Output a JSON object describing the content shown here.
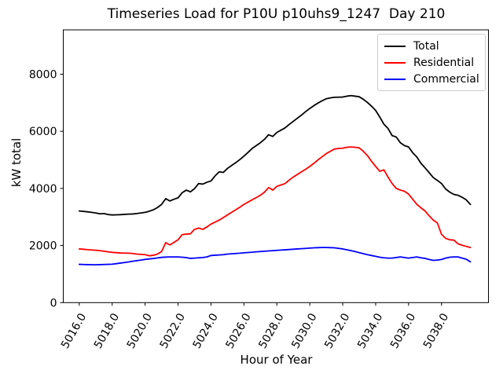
{
  "chart_data": {
    "type": "line",
    "title": "Timeseries Load for P10U p10uhs9_1247  Day 210",
    "xlabel": "Hour of Year",
    "ylabel": "kW total",
    "xlim": [
      5015.03,
      5040.85
    ],
    "ylim": [
      0,
      9553
    ],
    "x_ticks": [
      5016,
      5018,
      5020,
      5022,
      5024,
      5026,
      5028,
      5030,
      5032,
      5034,
      5036,
      5038
    ],
    "x_tick_labels": [
      "5016.0",
      "5018.0",
      "5020.0",
      "5022.0",
      "5024.0",
      "5026.0",
      "5028.0",
      "5030.0",
      "5032.0",
      "5034.0",
      "5036.0",
      "5038.0"
    ],
    "x_tick_rotation": 60,
    "y_ticks": [
      0,
      2000,
      4000,
      6000,
      8000
    ],
    "y_tick_labels": [
      "0",
      "2000",
      "4000",
      "6000",
      "8000"
    ],
    "grid": false,
    "legend_position": "upper-right",
    "x": [
      5016.0,
      5016.25,
      5016.5,
      5016.75,
      5017.0,
      5017.25,
      5017.5,
      5017.75,
      5018.0,
      5018.25,
      5018.5,
      5018.75,
      5019.0,
      5019.25,
      5019.5,
      5019.75,
      5020.0,
      5020.25,
      5020.5,
      5020.75,
      5021.0,
      5021.25,
      5021.5,
      5021.75,
      5022.0,
      5022.25,
      5022.5,
      5022.75,
      5023.0,
      5023.25,
      5023.5,
      5023.75,
      5024.0,
      5024.25,
      5024.5,
      5024.75,
      5025.0,
      5025.25,
      5025.5,
      5025.75,
      5026.0,
      5026.25,
      5026.5,
      5026.75,
      5027.0,
      5027.25,
      5027.5,
      5027.75,
      5028.0,
      5028.25,
      5028.5,
      5028.75,
      5029.0,
      5029.25,
      5029.5,
      5029.75,
      5030.0,
      5030.25,
      5030.5,
      5030.75,
      5031.0,
      5031.25,
      5031.5,
      5031.75,
      5032.0,
      5032.25,
      5032.5,
      5032.75,
      5033.0,
      5033.25,
      5033.5,
      5033.75,
      5034.0,
      5034.25,
      5034.5,
      5034.75,
      5035.0,
      5035.25,
      5035.5,
      5035.75,
      5036.0,
      5036.25,
      5036.5,
      5036.75,
      5037.0,
      5037.25,
      5037.5,
      5037.75,
      5038.0,
      5038.25,
      5038.5,
      5038.75,
      5039.0,
      5039.25,
      5039.5,
      5039.75
    ],
    "series": [
      {
        "name": "Total",
        "color": "#000000",
        "values": [
          3210,
          3195,
          3180,
          3160,
          3140,
          3110,
          3120,
          3085,
          3070,
          3075,
          3080,
          3090,
          3100,
          3105,
          3120,
          3140,
          3160,
          3200,
          3250,
          3330,
          3440,
          3640,
          3560,
          3620,
          3670,
          3850,
          3940,
          3880,
          3990,
          4170,
          4150,
          4215,
          4260,
          4440,
          4580,
          4560,
          4700,
          4800,
          4900,
          5010,
          5130,
          5260,
          5400,
          5500,
          5600,
          5720,
          5880,
          5820,
          5960,
          6040,
          6120,
          6240,
          6350,
          6460,
          6570,
          6690,
          6800,
          6900,
          6990,
          7070,
          7140,
          7170,
          7190,
          7195,
          7200,
          7230,
          7250,
          7230,
          7210,
          7120,
          7010,
          6880,
          6730,
          6500,
          6250,
          6100,
          5850,
          5800,
          5600,
          5500,
          5450,
          5250,
          5100,
          4880,
          4720,
          4550,
          4380,
          4280,
          4170,
          3980,
          3870,
          3790,
          3760,
          3690,
          3600,
          3440
        ]
      },
      {
        "name": "Residential",
        "color": "#ff0000",
        "values": [
          1880,
          1870,
          1855,
          1845,
          1835,
          1820,
          1800,
          1780,
          1760,
          1750,
          1740,
          1735,
          1730,
          1720,
          1700,
          1690,
          1680,
          1640,
          1660,
          1700,
          1790,
          2100,
          2020,
          2110,
          2200,
          2380,
          2400,
          2410,
          2565,
          2610,
          2565,
          2650,
          2750,
          2820,
          2890,
          2980,
          3070,
          3160,
          3250,
          3340,
          3440,
          3520,
          3600,
          3680,
          3760,
          3870,
          4030,
          3940,
          4070,
          4120,
          4170,
          4290,
          4400,
          4490,
          4580,
          4670,
          4770,
          4880,
          5000,
          5110,
          5220,
          5300,
          5380,
          5400,
          5410,
          5440,
          5450,
          5440,
          5420,
          5300,
          5150,
          4950,
          4770,
          4600,
          4650,
          4400,
          4170,
          4000,
          3940,
          3900,
          3800,
          3620,
          3440,
          3320,
          3210,
          3040,
          2890,
          2790,
          2390,
          2250,
          2200,
          2190,
          2060,
          2010,
          1970,
          1930
        ]
      },
      {
        "name": "Commercial",
        "color": "#0000ff",
        "values": [
          1340,
          1335,
          1330,
          1328,
          1325,
          1330,
          1335,
          1340,
          1345,
          1365,
          1385,
          1405,
          1425,
          1450,
          1470,
          1490,
          1515,
          1530,
          1545,
          1565,
          1585,
          1595,
          1600,
          1600,
          1600,
          1590,
          1575,
          1550,
          1560,
          1570,
          1580,
          1600,
          1650,
          1660,
          1670,
          1680,
          1700,
          1710,
          1720,
          1730,
          1745,
          1755,
          1765,
          1780,
          1790,
          1800,
          1810,
          1820,
          1830,
          1840,
          1850,
          1860,
          1870,
          1880,
          1890,
          1900,
          1910,
          1920,
          1925,
          1930,
          1930,
          1925,
          1920,
          1900,
          1880,
          1850,
          1820,
          1790,
          1750,
          1715,
          1680,
          1650,
          1620,
          1590,
          1570,
          1560,
          1560,
          1580,
          1600,
          1580,
          1560,
          1580,
          1600,
          1570,
          1550,
          1510,
          1480,
          1490,
          1510,
          1560,
          1590,
          1600,
          1600,
          1560,
          1520,
          1430
        ]
      }
    ]
  },
  "legend": {
    "entries": [
      {
        "label": "Total",
        "color": "#000000"
      },
      {
        "label": "Residential",
        "color": "#ff0000"
      },
      {
        "label": "Commercial",
        "color": "#0000ff"
      }
    ]
  }
}
